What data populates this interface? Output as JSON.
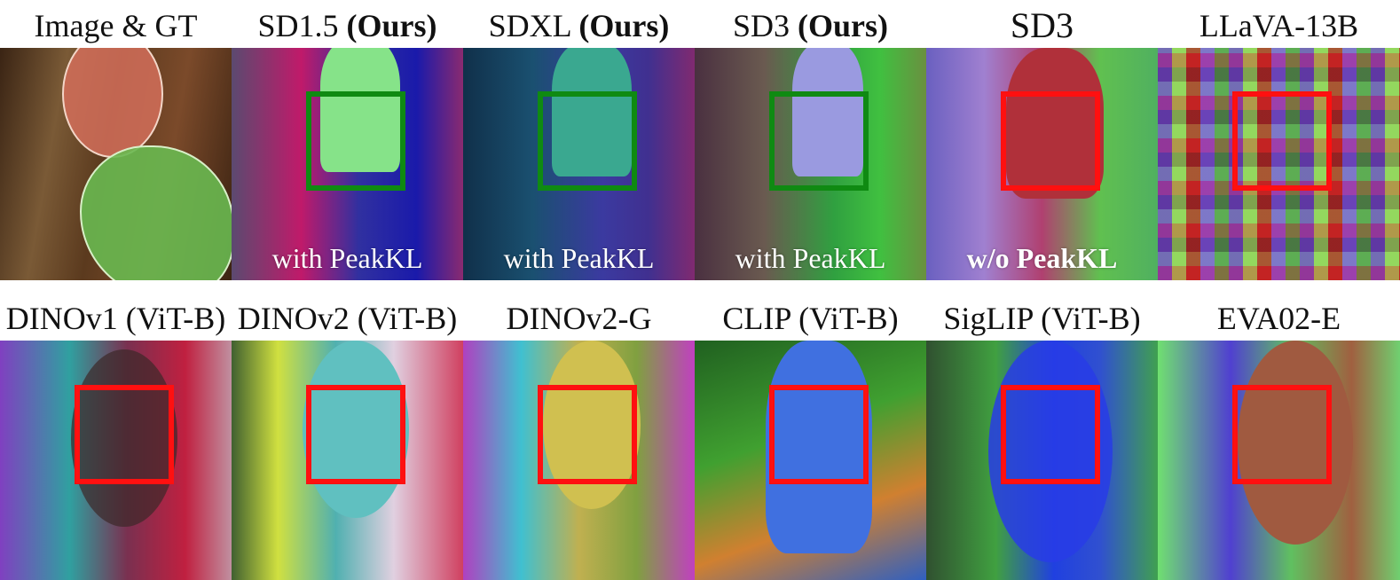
{
  "row1": {
    "labels": [
      "Image & GT",
      "SD1.5",
      "(Ours)",
      "SDXL",
      "(Ours)",
      "SD3",
      "(Ours)",
      "SD3",
      "LLaVA-13B"
    ],
    "captions": [
      "with PeakKL",
      "with PeakKL",
      "with PeakKL",
      "w/o PeakKL"
    ]
  },
  "row2": {
    "labels": [
      "DINOv1 (ViT-B)",
      "DINOv2 (ViT-B)",
      "DINOv2-G",
      "CLIP (ViT-B)",
      "SigLIP (ViT-B)",
      "EVA02-E"
    ]
  },
  "colors": {
    "box_good": "#0f8a12",
    "box_bad": "#ff1010"
  }
}
